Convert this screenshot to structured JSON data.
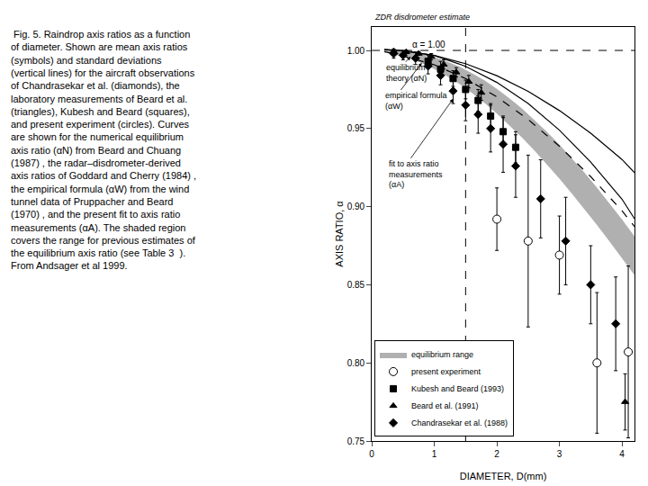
{
  "chart_data": {
    "type": "scatter",
    "caption": " Fig. 5. Raindrop axis ratios as a function\nof diameter. Shown are mean axis ratios\n(symbols) and standard deviations\n(vertical lines) for the aircraft observations\nof Chandrasekar et al. (diamonds), the\nlaboratory measurements of Beard et al.\n(triangles), Kubesh and Beard (squares),\nand present experiment (circles). Curves\nare shown for the numerical equilibrium\naxis ratio (αN) from Beard and Chuang\n(1987) , the radar–disdrometer-derived\naxis ratios of Goddard and Cherry (1984) ,\nthe empirical formula (αW) from the wind\ntunnel data of Pruppacher and Beard\n(1970) , and the present fit to axis ratio\nmeasurements (αA). The shaded region\ncovers the range for previous estimates of\nthe equilibrium axis ratio (see Table 3  ).\nFrom Andsager et al 1999.",
    "xlabel": "DIAMETER, D(mm)",
    "ylabel": "AXIS RATIO, α",
    "xlim": [
      0.0,
      4.2
    ],
    "ylim": [
      0.75,
      1.015
    ],
    "xticks": [
      0,
      1,
      2,
      3,
      4
    ],
    "yticks": [
      0.75,
      {
        "value": 0.8,
        "label": "0.80"
      },
      0.85,
      {
        "value": 0.9,
        "label": "0.90"
      },
      0.95,
      {
        "value": 1.0,
        "label": "1.00"
      }
    ],
    "grid": false,
    "legend": "lower left",
    "series": [
      {
        "name": "equilibrium range",
        "type": "area",
        "color": "#b0b0b0",
        "x": [
          0.2,
          0.4,
          0.6,
          0.8,
          1.0,
          1.2,
          1.4,
          1.6,
          1.8,
          2.0,
          2.2,
          2.4,
          2.6,
          2.8,
          3.0,
          3.2,
          3.4,
          3.6,
          3.8,
          4.0,
          4.2
        ],
        "upper": [
          1.001,
          1.0005,
          0.9995,
          0.9978,
          0.9958,
          0.993,
          0.9896,
          0.9855,
          0.9808,
          0.9754,
          0.9694,
          0.9628,
          0.9556,
          0.9479,
          0.9397,
          0.931,
          0.9218,
          0.9122,
          0.9022,
          0.8918,
          0.881
        ],
        "lower": [
          0.9992,
          0.9972,
          0.9948,
          0.9918,
          0.988,
          0.9836,
          0.9785,
          0.9728,
          0.9665,
          0.9596,
          0.9522,
          0.9443,
          0.9359,
          0.9271,
          0.9179,
          0.9083,
          0.8984,
          0.8882,
          0.8778,
          0.8671,
          0.8562
        ]
      },
      {
        "type": "line",
        "color": "black",
        "line_style": "solid",
        "x": [
          0.2,
          0.5,
          1.0,
          1.5,
          2.0,
          2.5,
          3.0,
          3.5,
          4.0,
          4.2
        ],
        "values": [
          1.0005,
          0.9998,
          0.9968,
          0.9915,
          0.9838,
          0.9738,
          0.9615,
          0.947,
          0.9302,
          0.9218
        ]
      },
      {
        "type": "line",
        "color": "black",
        "line_style": "dashed",
        "x": [
          0.2,
          0.5,
          1.0,
          1.5,
          2.0,
          2.5,
          3.0,
          3.5,
          4.0,
          4.2
        ],
        "values": [
          0.9992,
          0.9965,
          0.9908,
          0.982,
          0.9703,
          0.9558,
          0.9387,
          0.9192,
          0.8974,
          0.8873
        ]
      },
      {
        "type": "line",
        "color": "black",
        "line_style": "solid",
        "x": [
          0.2,
          0.5,
          1.0,
          1.5,
          2.0,
          2.5,
          3.0,
          3.5,
          4.0,
          4.2
        ],
        "values": [
          1.0005,
          0.9998,
          0.9968,
          0.9898,
          0.9795,
          0.966,
          0.949,
          0.9285,
          0.9048,
          0.8923
        ]
      },
      {
        "name": "Chandrasekar et al. (1988)",
        "type": "scatter",
        "marker": "diamond",
        "color": "black",
        "x": [
          0.35,
          0.5,
          0.7,
          0.9,
          1.1,
          1.3,
          1.5,
          1.7,
          1.9,
          2.1,
          2.3,
          2.7,
          3.1,
          3.5,
          3.9
        ],
        "values": [
          0.998,
          0.997,
          0.995,
          0.99,
          0.984,
          0.974,
          0.965,
          0.959,
          0.95,
          0.94,
          0.926,
          0.905,
          0.878,
          0.85,
          0.825
        ],
        "errors": [
          0.003,
          0.003,
          0.004,
          0.005,
          0.006,
          0.008,
          0.01,
          0.012,
          0.015,
          0.018,
          0.02,
          0.025,
          0.028,
          0.025,
          0.03
        ]
      },
      {
        "name": "Beard et al. (1991)",
        "type": "scatter",
        "marker": "triangle-up",
        "color": "black",
        "x": [
          0.35,
          0.55,
          0.75,
          0.95,
          1.15,
          1.35,
          1.55,
          1.75,
          4.05
        ],
        "values": [
          0.9995,
          0.999,
          0.998,
          0.996,
          0.991,
          0.986,
          0.98,
          0.973,
          0.775
        ],
        "errors": [
          0.001,
          0.001,
          0.001,
          0.002,
          0.003,
          0.003,
          0.004,
          0.005,
          0.018
        ]
      },
      {
        "name": "Kubesh and Beard (1993)",
        "type": "scatter",
        "marker": "square",
        "color": "black",
        "x": [
          0.9,
          1.1,
          1.3,
          1.5,
          1.7,
          1.9,
          2.1,
          2.3
        ],
        "values": [
          0.993,
          0.988,
          0.982,
          0.975,
          0.968,
          0.958,
          0.948,
          0.938
        ],
        "errors": [
          0.004,
          0.005,
          0.005,
          0.006,
          0.007,
          0.008,
          0.009,
          0.01
        ]
      },
      {
        "name": "present experiment",
        "type": "scatter",
        "marker": "circle-open",
        "color": "black",
        "x": [
          2.0,
          2.5,
          3.0,
          3.6,
          4.1
        ],
        "values": [
          0.892,
          0.878,
          0.869,
          0.8,
          0.807
        ],
        "errors_low": [
          0.02,
          0.055,
          0.025,
          0.045,
          0.055
        ],
        "errors_high": [
          0.02,
          0.055,
          0.025,
          0.045,
          0.055
        ]
      }
    ],
    "reference_lines": [
      {
        "axis": "x",
        "value": 1.5,
        "line_style": "dashed",
        "color": "black"
      },
      {
        "axis": "y",
        "value": 1.0,
        "line_style": "dashed",
        "color": "black"
      }
    ],
    "annotations": [
      {
        "text": "ZDR disdrometer estimate"
      },
      {
        "text": "α = 1.00"
      },
      {
        "text": "equilibrium\ntheory (αN)"
      },
      {
        "text": "empirical formula\n(αW)"
      },
      {
        "text": "fit to axis ratio\nmeasurements\n(αA)"
      }
    ]
  }
}
